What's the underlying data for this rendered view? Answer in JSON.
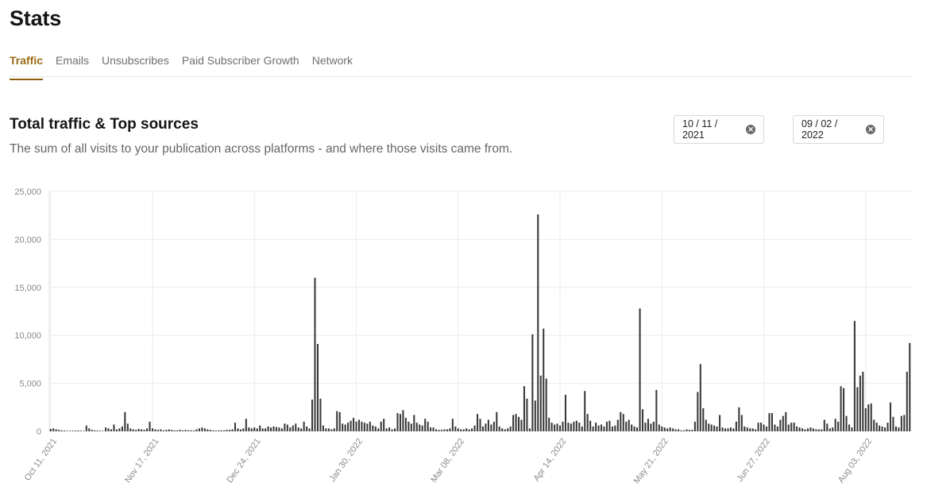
{
  "page": {
    "title": "Stats"
  },
  "tabs": [
    {
      "label": "Traffic",
      "active": true
    },
    {
      "label": "Emails",
      "active": false
    },
    {
      "label": "Unsubscribes",
      "active": false
    },
    {
      "label": "Paid Subscriber Growth",
      "active": false
    },
    {
      "label": "Network",
      "active": false
    }
  ],
  "section": {
    "title": "Total traffic & Top sources",
    "description": "The sum of all visits to your publication across platforms - and where those visits came from."
  },
  "date_range": {
    "start": "10 / 11 / 2021",
    "end": "09 / 02 / 2022",
    "clear_icon": "circle-x-icon"
  },
  "colors": {
    "accent": "#8d5f10",
    "bar": "#3a3a3a",
    "grid": "#ececec"
  },
  "chart_data": {
    "type": "bar",
    "ylim": [
      0,
      25000
    ],
    "y_ticks": [
      "0",
      "5,000",
      "10,000",
      "15,000",
      "20,000",
      "25,000"
    ],
    "x_tick_labels": [
      "Oct 11, 2021",
      "Nov 17, 2021",
      "Dec 24, 2021",
      "Jan 30, 2022",
      "Mar 08, 2022",
      "Apr 14, 2022",
      "May 21, 2022",
      "Jun 27, 2022",
      "Aug 03, 2022"
    ],
    "grid": true,
    "start_date": "2021-10-11",
    "values": [
      250,
      300,
      200,
      150,
      100,
      80,
      60,
      50,
      60,
      70,
      80,
      60,
      50,
      600,
      300,
      150,
      100,
      80,
      60,
      50,
      400,
      300,
      200,
      700,
      200,
      300,
      500,
      2000,
      800,
      300,
      200,
      150,
      250,
      200,
      150,
      300,
      1000,
      300,
      200,
      150,
      200,
      100,
      150,
      200,
      150,
      100,
      100,
      150,
      100,
      150,
      100,
      100,
      80,
      200,
      300,
      400,
      300,
      200,
      150,
      100,
      80,
      100,
      100,
      100,
      150,
      150,
      200,
      900,
      300,
      200,
      300,
      1300,
      400,
      300,
      400,
      300,
      600,
      300,
      300,
      500,
      400,
      500,
      450,
      400,
      300,
      800,
      700,
      400,
      600,
      800,
      400,
      300,
      1000,
      500,
      300,
      3300,
      16000,
      9100,
      3400,
      600,
      300,
      300,
      200,
      300,
      2100,
      2000,
      800,
      700,
      900,
      1100,
      1400,
      1000,
      1200,
      1000,
      900,
      800,
      1000,
      600,
      500,
      300,
      1000,
      1300,
      300,
      400,
      200,
      300,
      1900,
      1800,
      2200,
      1400,
      1000,
      800,
      1700,
      900,
      700,
      600,
      1300,
      1000,
      400,
      400,
      200,
      150,
      150,
      200,
      200,
      300,
      1300,
      500,
      300,
      200,
      200,
      300,
      200,
      300,
      600,
      1800,
      1300,
      500,
      800,
      1200,
      700,
      1000,
      2000,
      500,
      300,
      200,
      300,
      500,
      1700,
      1800,
      1500,
      1200,
      4700,
      3400,
      300,
      10100,
      3200,
      22600,
      5800,
      10700,
      5500,
      1400,
      900,
      700,
      800,
      600,
      1000,
      3800,
      900,
      800,
      1000,
      1100,
      900,
      500,
      4200,
      1800,
      1100,
      500,
      900,
      600,
      700,
      500,
      1000,
      1100,
      500,
      600,
      1200,
      2000,
      1800,
      1000,
      1200,
      700,
      500,
      400,
      12800,
      2300,
      900,
      1300,
      800,
      1000,
      4300,
      700,
      500,
      400,
      300,
      400,
      300,
      200,
      200,
      100,
      100,
      200,
      150,
      150,
      1000,
      4100,
      7000,
      2400,
      1200,
      800,
      700,
      600,
      500,
      1700,
      400,
      300,
      300,
      400,
      300,
      1000,
      2500,
      1700,
      500,
      400,
      300,
      300,
      200,
      900,
      900,
      700,
      500,
      1900,
      1900,
      700,
      500,
      1200,
      1600,
      2000,
      700,
      900,
      900,
      500,
      400,
      300,
      200,
      300,
      400,
      300,
      200,
      200,
      200,
      1200,
      800,
      300,
      400,
      1300,
      1000,
      4700,
      4500,
      1600,
      700,
      400,
      11500,
      4600,
      5800,
      6200,
      2400,
      2800,
      2900,
      1200,
      900,
      600,
      500,
      400,
      900,
      3000,
      1500,
      500,
      400,
      1600,
      1700,
      6200,
      9200
    ]
  }
}
